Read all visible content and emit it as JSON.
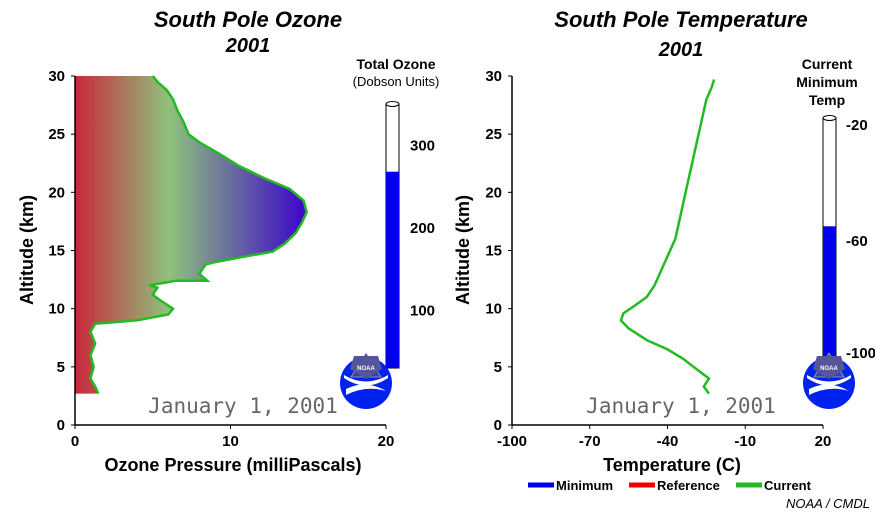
{
  "chart_data": [
    {
      "type": "area",
      "title": "South Pole Ozone",
      "subtitle": "2001",
      "xlabel": "Ozone Pressure (milliPascals)",
      "ylabel": "Altitude (km)",
      "xlim": [
        0,
        20
      ],
      "ylim": [
        0,
        30
      ],
      "xticks": [
        "0",
        "10",
        "20"
      ],
      "yticks": [
        "0",
        "5",
        "10",
        "15",
        "20",
        "25",
        "30"
      ],
      "date_label": "January 1, 2001",
      "series": [
        {
          "name": "Current",
          "color": "#22bb22",
          "points": [
            [
              1.5,
              2.7
            ],
            [
              1.3,
              3.3
            ],
            [
              1.0,
              4.0
            ],
            [
              1.2,
              5.0
            ],
            [
              1.0,
              6.0
            ],
            [
              1.3,
              7.0
            ],
            [
              1.0,
              8.0
            ],
            [
              1.3,
              8.7
            ],
            [
              4.0,
              9.0
            ],
            [
              6.0,
              9.5
            ],
            [
              6.3,
              10.0
            ],
            [
              5.5,
              10.7
            ],
            [
              5.0,
              11.2
            ],
            [
              5.3,
              11.8
            ],
            [
              4.8,
              12.0
            ],
            [
              6.5,
              12.4
            ],
            [
              8.5,
              12.4
            ],
            [
              8.0,
              13.0
            ],
            [
              8.4,
              13.8
            ],
            [
              9.0,
              14.0
            ],
            [
              11.0,
              14.5
            ],
            [
              12.7,
              14.9
            ],
            [
              13.5,
              15.6
            ],
            [
              14.2,
              16.5
            ],
            [
              14.6,
              17.4
            ],
            [
              14.9,
              18.3
            ],
            [
              14.7,
              19.3
            ],
            [
              13.8,
              20.3
            ],
            [
              12.2,
              21.2
            ],
            [
              10.5,
              22.3
            ],
            [
              9.3,
              23.3
            ],
            [
              8.0,
              24.3
            ],
            [
              7.3,
              25.0
            ],
            [
              7.0,
              26.0
            ],
            [
              6.6,
              27.0
            ],
            [
              6.3,
              28.0
            ],
            [
              5.9,
              28.8
            ],
            [
              5.3,
              29.5
            ],
            [
              5.0,
              30.0
            ]
          ]
        }
      ],
      "gauge": {
        "title": "Total Ozone",
        "units": "(Dobson Units)",
        "ticks": [
          "100",
          "200",
          "300"
        ],
        "value": 268,
        "range": [
          30,
          350
        ],
        "fill_color": "#0000ee"
      }
    },
    {
      "type": "line",
      "title": "South Pole Temperature",
      "subtitle": "2001",
      "xlabel": "Temperature (C)",
      "ylabel": "Altitude (km)",
      "xlim": [
        -100,
        20
      ],
      "ylim": [
        0,
        30
      ],
      "xticks": [
        "-100",
        "-70",
        "-40",
        "-10",
        "20"
      ],
      "yticks": [
        "0",
        "5",
        "10",
        "15",
        "20",
        "25",
        "30"
      ],
      "date_label": "January 1, 2001",
      "legend_position": "bottom",
      "legend": [
        {
          "name": "Minimum",
          "color": "#0000ee"
        },
        {
          "name": "Reference",
          "color": "#ee0000"
        },
        {
          "name": "Current",
          "color": "#22bb22"
        }
      ],
      "series": [
        {
          "name": "Current",
          "color": "#22bb22",
          "points": [
            [
              -24,
              2.7
            ],
            [
              -26,
              3.3
            ],
            [
              -24,
              4.0
            ],
            [
              -27,
              4.5
            ],
            [
              -30,
              5.0
            ],
            [
              -34,
              5.7
            ],
            [
              -40,
              6.5
            ],
            [
              -48,
              7.3
            ],
            [
              -55,
              8.3
            ],
            [
              -58,
              9.0
            ],
            [
              -57,
              9.6
            ],
            [
              -53,
              10.2
            ],
            [
              -48,
              11.0
            ],
            [
              -45,
              12.0
            ],
            [
              -43,
              13.0
            ],
            [
              -41,
              14.0
            ],
            [
              -39,
              15.0
            ],
            [
              -37,
              16.0
            ],
            [
              -36,
              17.0
            ],
            [
              -35,
              18.0
            ],
            [
              -34,
              19.0
            ],
            [
              -33,
              20.0
            ],
            [
              -32,
              21.0
            ],
            [
              -31,
              22.0
            ],
            [
              -30,
              23.0
            ],
            [
              -29,
              24.0
            ],
            [
              -28,
              25.0
            ],
            [
              -27,
              26.0
            ],
            [
              -26,
              27.0
            ],
            [
              -25,
              28.0
            ],
            [
              -23,
              29.0
            ],
            [
              -22,
              29.7
            ]
          ]
        }
      ],
      "gauge": {
        "title": [
          "Current",
          "Minimum",
          "Temp"
        ],
        "ticks": [
          "-20",
          "-60",
          "-100"
        ],
        "value": -59,
        "range": [
          -20,
          -110
        ],
        "fill_color": "#0000ee"
      }
    }
  ],
  "credit": "NOAA / CMDL",
  "logo_text": "NOAA"
}
